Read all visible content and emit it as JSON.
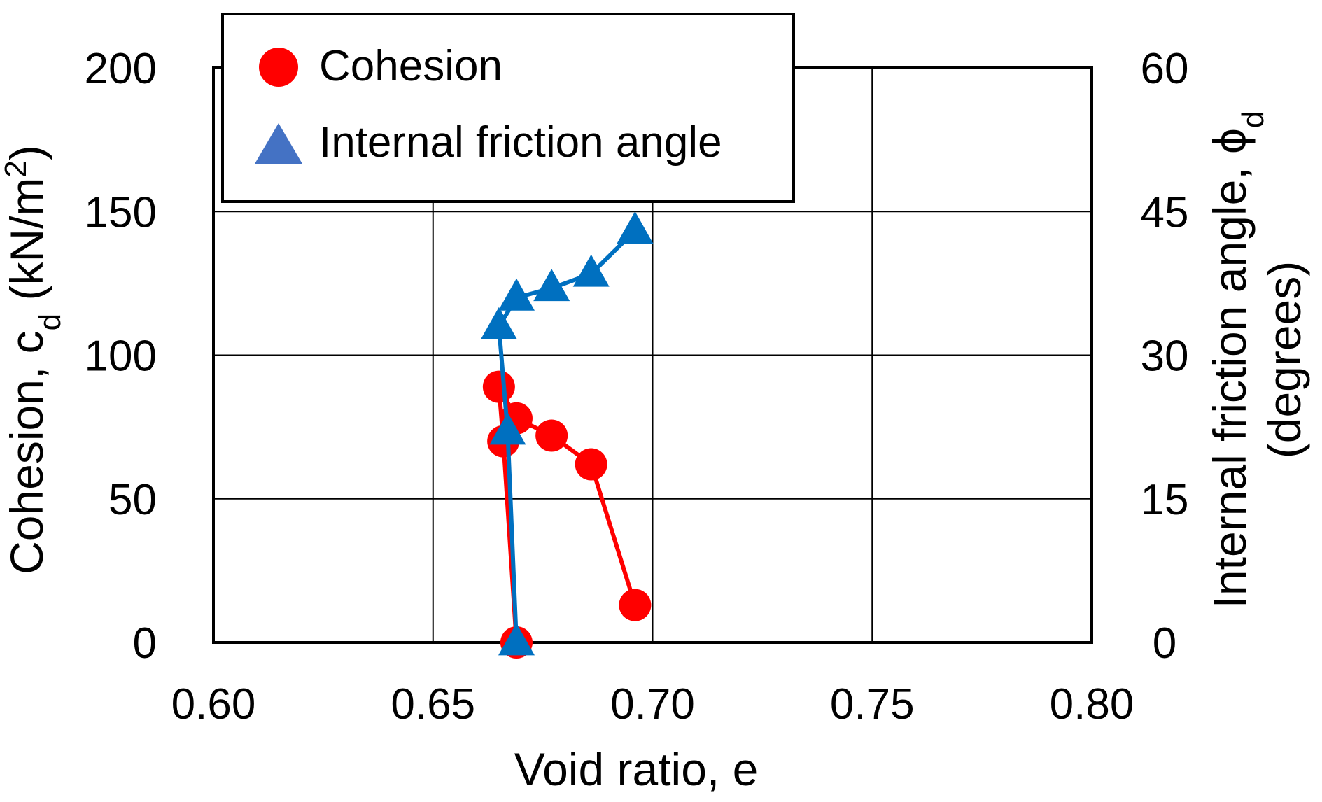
{
  "chart_data": {
    "type": "scatter",
    "x_axis": {
      "label": "Void ratio, e",
      "range": [
        0.6,
        0.8
      ],
      "ticks": [
        0.6,
        0.65,
        0.7,
        0.75,
        0.8
      ],
      "tick_labels": [
        "0.60",
        "0.65",
        "0.70",
        "0.75",
        "0.80"
      ]
    },
    "y_axis_left": {
      "label_main": "Cohesion, c",
      "label_subscript": "d",
      "label_unit": " (kN/m",
      "label_superscript": "2",
      "label_close": ")",
      "range": [
        0,
        200
      ],
      "ticks": [
        0,
        50,
        100,
        150,
        200
      ],
      "tick_labels": [
        "0",
        "50",
        "100",
        "150",
        "200"
      ]
    },
    "y_axis_right": {
      "label_line1_main": "Internal friction angle, ",
      "label_line1_symbol": "ϕ",
      "label_line1_subscript": "d",
      "label_line2": "(degrees)",
      "range": [
        0,
        60
      ],
      "ticks": [
        0,
        15,
        30,
        45,
        60
      ],
      "tick_labels": [
        "0",
        "15",
        "30",
        "45",
        "60"
      ]
    },
    "grid": true,
    "legend_position": "top-left",
    "series": [
      {
        "name": "Cohesion",
        "axis": "left",
        "marker": "circle",
        "color": "#ff0000",
        "points": [
          {
            "x": 0.669,
            "y": 0
          },
          {
            "x": 0.666,
            "y": 70
          },
          {
            "x": 0.665,
            "y": 89
          },
          {
            "x": 0.669,
            "y": 78
          },
          {
            "x": 0.677,
            "y": 72
          },
          {
            "x": 0.686,
            "y": 62
          },
          {
            "x": 0.696,
            "y": 13
          }
        ]
      },
      {
        "name": "Internal friction angle",
        "axis": "right",
        "marker": "triangle",
        "color": "#0070c0",
        "legend_color": "#4472c4",
        "points": [
          {
            "x": 0.669,
            "y": 0
          },
          {
            "x": 0.667,
            "y": 22
          },
          {
            "x": 0.665,
            "y": 33
          },
          {
            "x": 0.669,
            "y": 36
          },
          {
            "x": 0.677,
            "y": 37
          },
          {
            "x": 0.686,
            "y": 38.5
          },
          {
            "x": 0.696,
            "y": 43
          }
        ]
      }
    ]
  }
}
